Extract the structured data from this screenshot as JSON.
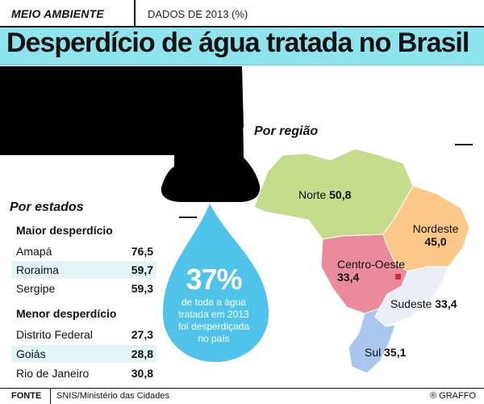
{
  "header": {
    "section": "MEIO AMBIENTE",
    "subtitle": "DADOS DE 2013 (%)"
  },
  "title": "Desperdício de água tratada no Brasil",
  "states": {
    "heading": "Por estados",
    "max_group": "Maior desperdício",
    "min_group": "Menor desperdício"
  },
  "regions": {
    "heading": "Por região"
  },
  "drop": {
    "percent": "37%",
    "lines": [
      "de toda a água",
      "tratada em 2013",
      "foi desperdiçada",
      "no país"
    ]
  },
  "footer": {
    "label": "FONTE",
    "source": "SNIS/Ministério das Cidades",
    "credit": "® GRAFFO"
  },
  "colors": {
    "title_band": "#8fe3ec",
    "drop": "#4fc3ea",
    "norte": "#c4dc8c",
    "nordeste": "#fbc88a",
    "centro_oeste": "#eb8a9c",
    "sudeste": "#eaeef8",
    "sul": "#a9c6ee"
  },
  "chart_data": [
    {
      "type": "table",
      "title": "Por estados",
      "groups": [
        {
          "name": "Maior desperdício",
          "rows": [
            {
              "label": "Amapá",
              "value": "76,5"
            },
            {
              "label": "Roraima",
              "value": "59,7"
            },
            {
              "label": "Sergipe",
              "value": "59,3"
            }
          ]
        },
        {
          "name": "Menor desperdício",
          "rows": [
            {
              "label": "Distrito Federal",
              "value": "27,3"
            },
            {
              "label": "Goiás",
              "value": "28,8"
            },
            {
              "label": "Rio de Janeiro",
              "value": "30,8"
            }
          ]
        }
      ]
    },
    {
      "type": "map",
      "title": "Por região",
      "regions": [
        {
          "key": "norte",
          "name": "Norte",
          "value": "50,8"
        },
        {
          "key": "nordeste",
          "name": "Nordeste",
          "value": "45,0"
        },
        {
          "key": "centro_oeste",
          "name": "Centro-Oeste",
          "value": "33,4"
        },
        {
          "key": "sudeste",
          "name": "Sudeste",
          "value": "33,4"
        },
        {
          "key": "sul",
          "name": "Sul",
          "value": "35,1"
        }
      ]
    }
  ]
}
